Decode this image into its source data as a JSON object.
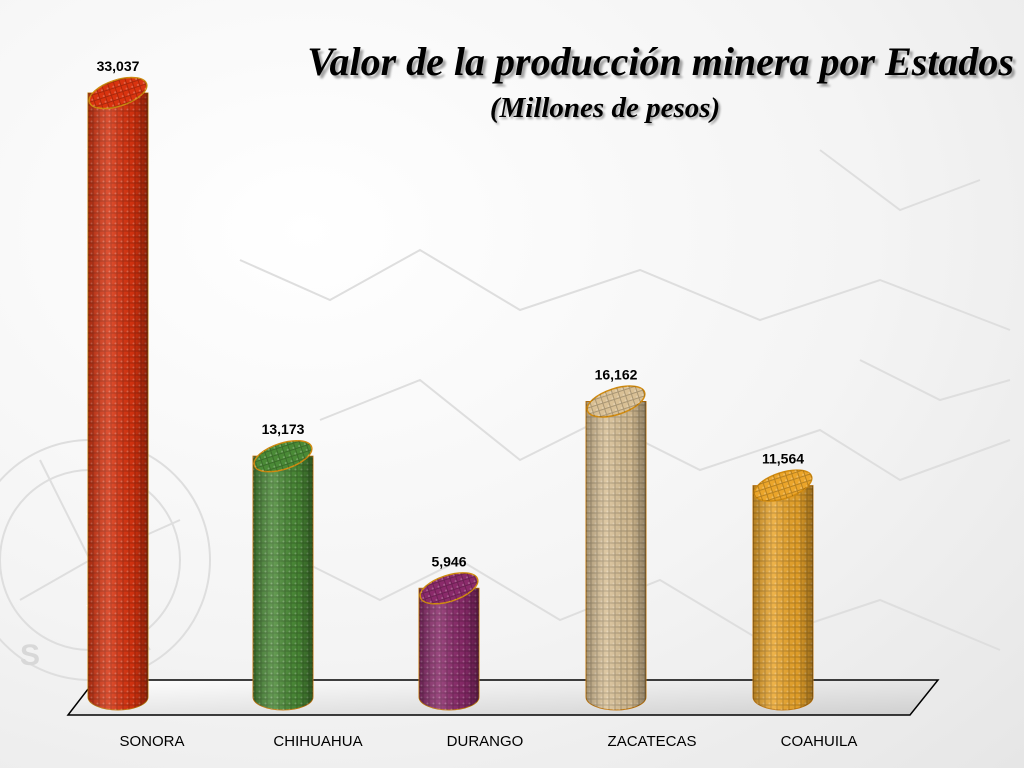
{
  "chart_data": {
    "type": "bar",
    "title": "Valor de la producción minera por Estados",
    "subtitle": "(Millones de pesos)",
    "categories": [
      "SONORA",
      "CHIHUAHUA",
      "DURANGO",
      "ZACATECAS",
      "COAHUILA"
    ],
    "values": [
      33037,
      13173,
      5946,
      16162,
      11564
    ],
    "value_labels": [
      "33,037",
      "13,173",
      "5,946",
      "16,162",
      "11,564"
    ],
    "colors": [
      "#d9330f",
      "#4a8a36",
      "#8a2a6a",
      "#d9c095",
      "#eba52a"
    ],
    "ylim": [
      0,
      35000
    ],
    "grid": true,
    "bar_shape": "cylinder"
  }
}
